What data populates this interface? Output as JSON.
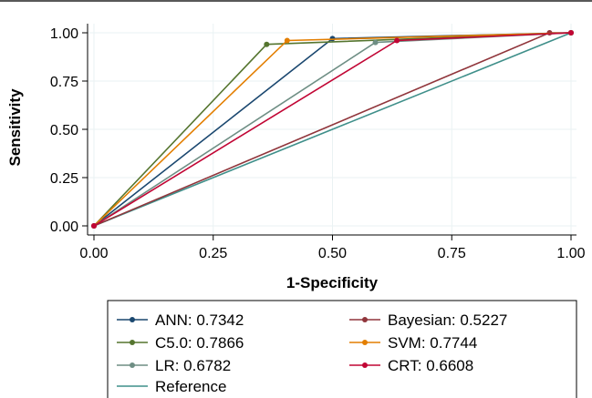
{
  "chart_data": {
    "type": "line",
    "xlabel": "1-Specificity",
    "ylabel": "Sensitivity",
    "xlim": [
      0,
      1
    ],
    "ylim": [
      0,
      1
    ],
    "xticks": [
      "0.00",
      "0.25",
      "0.50",
      "0.75",
      "1.00"
    ],
    "yticks": [
      "0.00",
      "0.25",
      "0.50",
      "0.75",
      "1.00"
    ],
    "grid": true,
    "legend_position": "bottom",
    "series": [
      {
        "name": "ANN: 0.7342",
        "color": "#1a476f",
        "markers": true,
        "points": [
          [
            0,
            0
          ],
          [
            0.5,
            0.97
          ],
          [
            1,
            1
          ]
        ]
      },
      {
        "name": "Bayesian: 0.5227",
        "color": "#90353b",
        "markers": true,
        "points": [
          [
            0,
            0
          ],
          [
            0.955,
            1.0
          ],
          [
            1,
            1
          ]
        ]
      },
      {
        "name": "C5.0: 0.7866",
        "color": "#55752f",
        "markers": true,
        "points": [
          [
            0,
            0
          ],
          [
            0.362,
            0.94
          ],
          [
            1,
            1
          ]
        ]
      },
      {
        "name": "SVM: 0.7744",
        "color": "#e37e00",
        "markers": true,
        "points": [
          [
            0,
            0
          ],
          [
            0.405,
            0.96
          ],
          [
            1,
            1
          ]
        ]
      },
      {
        "name": "LR: 0.6782",
        "color": "#6e8e84",
        "markers": true,
        "points": [
          [
            0,
            0
          ],
          [
            0.59,
            0.95
          ],
          [
            1,
            1
          ]
        ]
      },
      {
        "name": "CRT: 0.6608",
        "color": "#c10534",
        "markers": true,
        "points": [
          [
            0,
            0
          ],
          [
            0.635,
            0.96
          ],
          [
            1,
            1
          ]
        ]
      },
      {
        "name": "Reference",
        "color": "#3f8f8a",
        "markers": false,
        "points": [
          [
            0,
            0
          ],
          [
            1,
            1
          ]
        ]
      }
    ]
  }
}
